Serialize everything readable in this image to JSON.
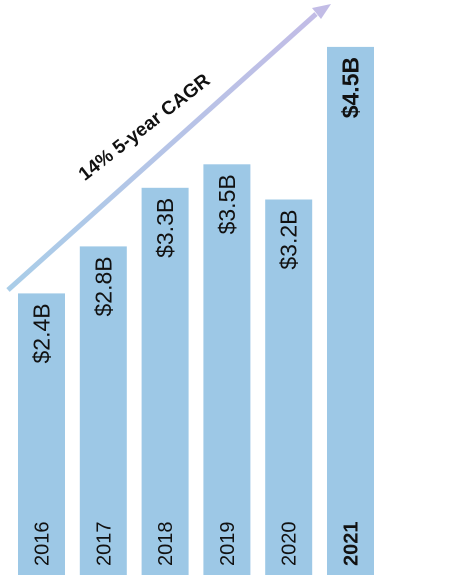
{
  "chart_data": {
    "type": "bar",
    "categories": [
      "2016",
      "2017",
      "2018",
      "2019",
      "2020",
      "2021"
    ],
    "values": [
      2.4,
      2.8,
      3.3,
      3.5,
      3.2,
      4.5
    ],
    "value_labels": [
      "$2.4B",
      "$2.8B",
      "$3.3B",
      "$3.5B",
      "$3.2B",
      "$4.5B"
    ],
    "highlight_category": "2021",
    "annotation": "14% 5-year CAGR",
    "ylim": [
      0,
      4.9
    ],
    "bar_color": "#9dc8e6",
    "arrow_gradient": [
      "#a9cde8",
      "#c2bce6"
    ],
    "grid": false,
    "legend": "none"
  }
}
